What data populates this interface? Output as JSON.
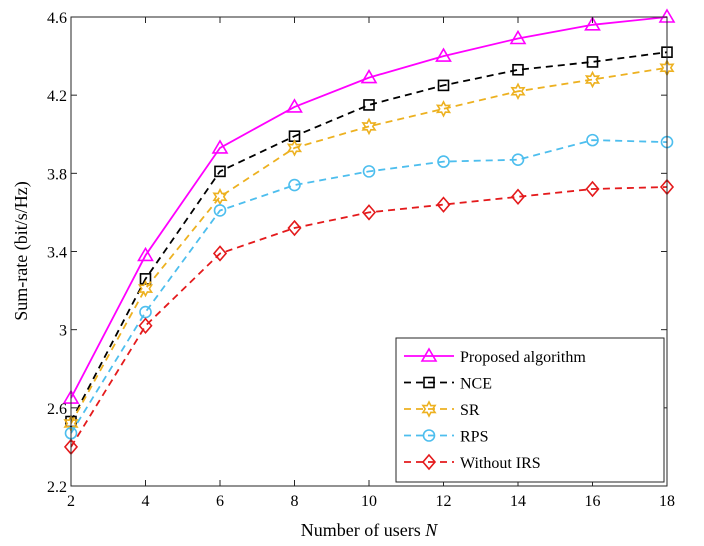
{
  "chart_data": {
    "type": "line",
    "xlabel": "Number of users",
    "xlabel_var": "N",
    "ylabel": "Sum-rate (bit/s/Hz)",
    "xlim": [
      2,
      18
    ],
    "ylim": [
      2.2,
      4.6
    ],
    "xticks": [
      "2",
      "4",
      "6",
      "8",
      "10",
      "12",
      "14",
      "16",
      "18"
    ],
    "yticks": [
      "2.2",
      "2.6",
      "3",
      "3.4",
      "3.8",
      "4.2",
      "4.6"
    ],
    "grid": false,
    "legend_position": "bottom-right",
    "x": [
      2,
      4,
      6,
      8,
      10,
      12,
      14,
      16,
      18
    ],
    "series": [
      {
        "name": "Proposed algorithm",
        "marker": "triangle",
        "line": "solid",
        "color": "#ff00ff",
        "values": [
          2.65,
          3.38,
          3.93,
          4.14,
          4.29,
          4.4,
          4.49,
          4.56,
          4.6
        ]
      },
      {
        "name": "NCE",
        "marker": "square",
        "line": "dashed",
        "color": "#000000",
        "values": [
          2.53,
          3.26,
          3.81,
          3.99,
          4.15,
          4.25,
          4.33,
          4.37,
          4.42
        ]
      },
      {
        "name": "SR",
        "marker": "hexagram",
        "line": "dashed",
        "color": "#edb120",
        "values": [
          2.52,
          3.21,
          3.68,
          3.93,
          4.04,
          4.13,
          4.22,
          4.28,
          4.34
        ]
      },
      {
        "name": "RPS",
        "marker": "circle",
        "line": "dashed",
        "color": "#4dbeee",
        "values": [
          2.47,
          3.09,
          3.61,
          3.74,
          3.81,
          3.86,
          3.87,
          3.97,
          3.96
        ]
      },
      {
        "name": "Without IRS",
        "marker": "diamond",
        "line": "dashed",
        "color": "#e41a1c",
        "values": [
          2.4,
          3.02,
          3.39,
          3.52,
          3.6,
          3.64,
          3.68,
          3.72,
          3.73
        ]
      }
    ]
  }
}
